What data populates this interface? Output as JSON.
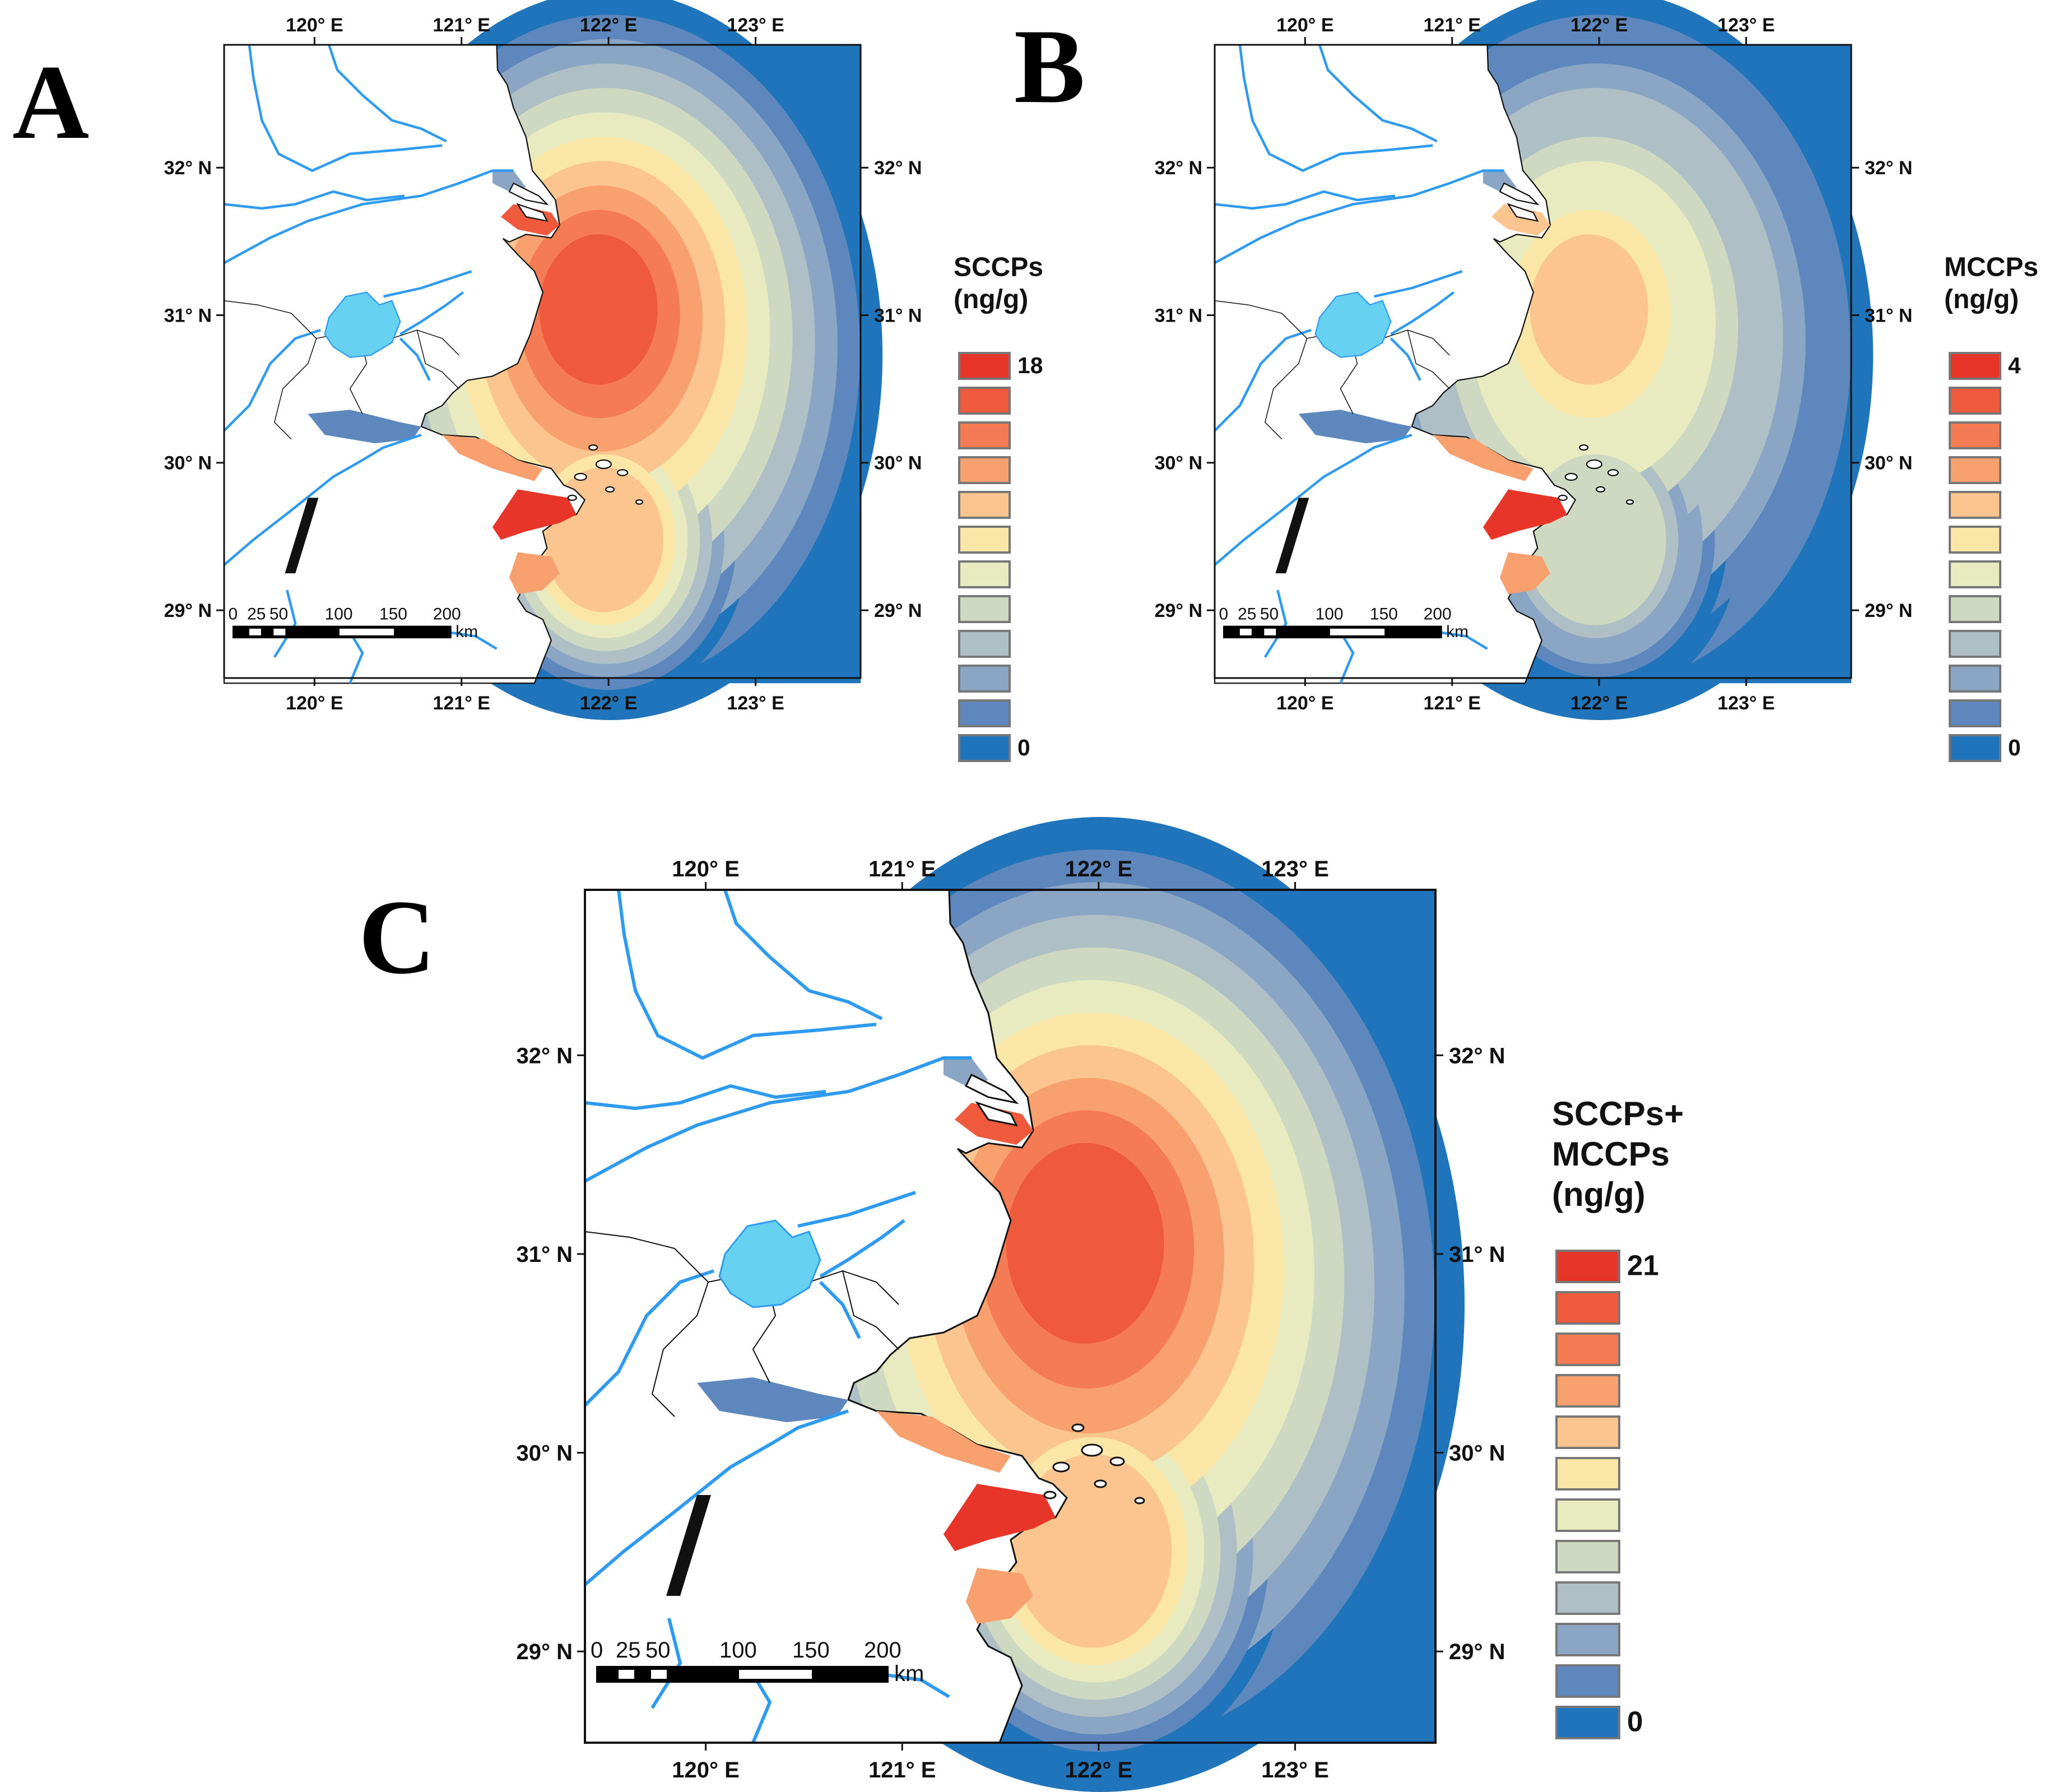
{
  "panels": [
    {
      "letter": "A",
      "lon_labels": [
        "120° E",
        "121° E",
        "122° E",
        "123° E"
      ],
      "lat_labels": [
        "32° N",
        "31° N",
        "30° N",
        "29° N"
      ],
      "legend_title_lines": [
        "SCCPs",
        "(ng/g)"
      ],
      "legend_max": "18",
      "legend_min": "0",
      "scale_labels": [
        "0",
        "25",
        "50",
        "100",
        "150",
        "200"
      ],
      "scale_unit": "km",
      "hotspot_strength": 1.0
    },
    {
      "letter": "B",
      "lon_labels": [
        "120° E",
        "121° E",
        "122° E",
        "123° E"
      ],
      "lat_labels": [
        "32° N",
        "31° N",
        "30° N",
        "29° N"
      ],
      "legend_title_lines": [
        "MCCPs",
        "(ng/g)"
      ],
      "legend_max": "4",
      "legend_min": "0",
      "scale_labels": [
        "0",
        "25",
        "50",
        "100",
        "150",
        "200"
      ],
      "scale_unit": "km",
      "hotspot_strength": 0.45
    },
    {
      "letter": "C",
      "lon_labels": [
        "120° E",
        "121° E",
        "122° E",
        "123° E"
      ],
      "lat_labels": [
        "32° N",
        "31° N",
        "30° N",
        "29° N"
      ],
      "legend_title_lines": [
        "SCCPs+",
        "MCCPs",
        "(ng/g)"
      ],
      "legend_max": "21",
      "legend_min": "0",
      "scale_labels": [
        "0",
        "25",
        "50",
        "100",
        "150",
        "200"
      ],
      "scale_unit": "km",
      "hotspot_strength": 1.0
    }
  ],
  "legend_colors": [
    "#e8352a",
    "#f05a3c",
    "#f57c52",
    "#f8a06e",
    "#fbc590",
    "#fae6a6",
    "#e7ebbf",
    "#cfd9c2",
    "#aebfc6",
    "#8aa6c4",
    "#5e88bd",
    "#1f74ba"
  ],
  "colors": {
    "sea": "#1f74ba",
    "river": "#2e9bf0",
    "lake": "#67d1f2",
    "land": "#ffffff",
    "border": "#111111"
  }
}
